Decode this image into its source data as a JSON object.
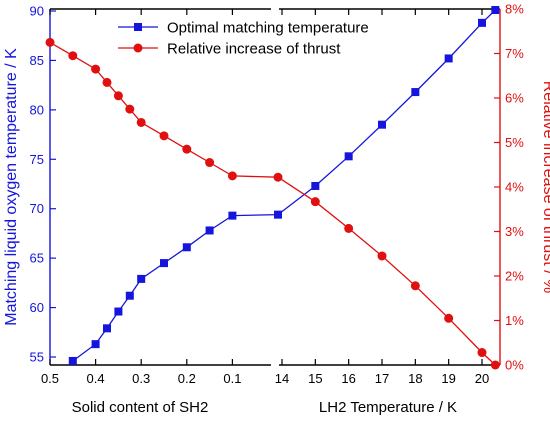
{
  "chart_data": {
    "type": "line",
    "title": "",
    "axes": {
      "x_left": {
        "label": "Solid content of SH2",
        "range": [
          0.5,
          0.0
        ],
        "ticks": [
          "0.5",
          "0.4",
          "0.3",
          "0.2",
          "0.1"
        ],
        "tick_values": [
          0.5,
          0.4,
          0.3,
          0.2,
          0.1
        ]
      },
      "x_right": {
        "label": "LH2 Temperature / K",
        "range": [
          14,
          20.4
        ],
        "ticks": [
          "14",
          "15",
          "16",
          "17",
          "18",
          "19",
          "20"
        ],
        "tick_values": [
          14,
          15,
          16,
          17,
          18,
          19,
          20
        ]
      },
      "y_left": {
        "label": "Matching liquid oxygen temperature / K",
        "range": [
          54,
          90
        ],
        "ticks": [
          "55",
          "60",
          "65",
          "70",
          "75",
          "80",
          "85",
          "90"
        ],
        "tick_values": [
          55,
          60,
          65,
          70,
          75,
          80,
          85,
          90
        ],
        "color": "#1515dd"
      },
      "y_right": {
        "label": "Relative increase of thrust / %",
        "range": [
          0,
          8
        ],
        "ticks": [
          "0%",
          "1%",
          "2%",
          "3%",
          "4%",
          "5%",
          "6%",
          "7%",
          "8%"
        ],
        "tick_values": [
          0,
          1,
          2,
          3,
          4,
          5,
          6,
          7,
          8
        ],
        "color": "#e01010"
      }
    },
    "legend": {
      "placement": "top-center",
      "entries": [
        "Optimal matching temperature",
        "Relative increase of thrust"
      ]
    },
    "series": [
      {
        "name": "Optimal matching temperature",
        "color": "#1515dd",
        "marker": "square",
        "axis": "y_left",
        "points_sh2": [
          [
            0.45,
            54.6
          ],
          [
            0.4,
            56.3
          ],
          [
            0.375,
            57.9
          ],
          [
            0.35,
            59.6
          ],
          [
            0.325,
            61.2
          ],
          [
            0.3,
            62.9
          ],
          [
            0.25,
            64.5
          ],
          [
            0.2,
            66.1
          ],
          [
            0.15,
            67.8
          ],
          [
            0.1,
            69.3
          ],
          [
            0.0,
            69.4
          ]
        ],
        "points_lh2": [
          [
            15,
            72.3
          ],
          [
            16,
            75.3
          ],
          [
            17,
            78.5
          ],
          [
            18,
            81.8
          ],
          [
            19,
            85.2
          ],
          [
            20,
            88.8
          ],
          [
            20.4,
            90.1
          ]
        ]
      },
      {
        "name": "Relative increase of thrust",
        "color": "#e01010",
        "marker": "circle",
        "axis": "y_right",
        "points_sh2": [
          [
            0.5,
            7.25
          ],
          [
            0.45,
            6.95
          ],
          [
            0.4,
            6.65
          ],
          [
            0.375,
            6.35
          ],
          [
            0.35,
            6.05
          ],
          [
            0.325,
            5.75
          ],
          [
            0.3,
            5.45
          ],
          [
            0.25,
            5.15
          ],
          [
            0.2,
            4.85
          ],
          [
            0.15,
            4.55
          ],
          [
            0.1,
            4.25
          ],
          [
            0.0,
            4.22
          ]
        ],
        "points_lh2": [
          [
            15,
            3.67
          ],
          [
            16,
            3.07
          ],
          [
            17,
            2.45
          ],
          [
            18,
            1.78
          ],
          [
            19,
            1.05
          ],
          [
            20,
            0.28
          ],
          [
            20.4,
            0.0
          ]
        ]
      }
    ]
  }
}
